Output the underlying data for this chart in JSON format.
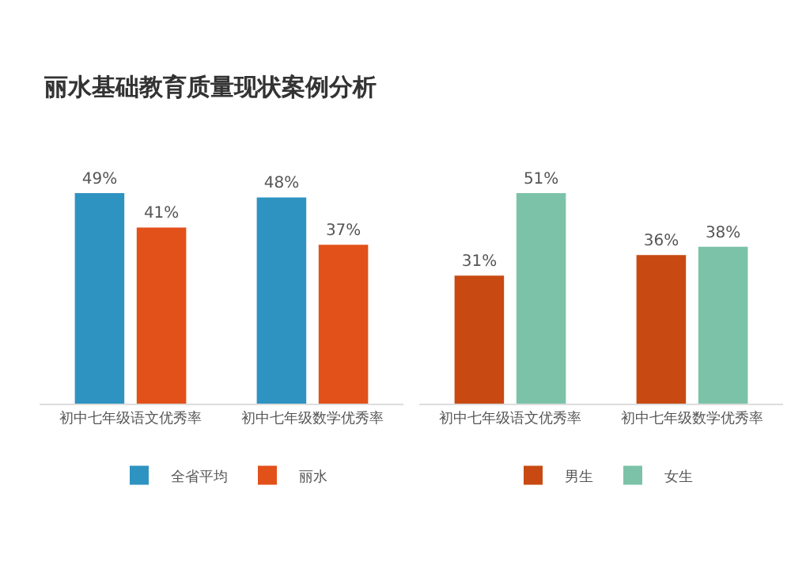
{
  "chart_data": [
    {
      "type": "bar",
      "title": "丽水基础教育质量现状案例分析",
      "categories": [
        "初中七年级语文优秀率",
        "初中七年级数学优秀率"
      ],
      "series": [
        {
          "name": "全省平均",
          "color": "#2e93c0",
          "values": [
            49,
            48
          ],
          "value_labels": [
            "49%",
            "48%"
          ]
        },
        {
          "name": "丽水",
          "color": "#e2511a",
          "values": [
            41,
            37
          ],
          "value_labels": [
            "41%",
            "37%"
          ]
        }
      ],
      "legend": "bottom"
    },
    {
      "type": "bar",
      "categories": [
        "初中七年级语文优秀率",
        "初中七年级数学优秀率"
      ],
      "series": [
        {
          "name": "男生",
          "color": "#c84a12",
          "values": [
            31,
            36
          ],
          "value_labels": [
            "31%",
            "36%"
          ]
        },
        {
          "name": "女生",
          "color": "#7cc2a9",
          "values": [
            51,
            38
          ],
          "value_labels": [
            "51%",
            "38%"
          ]
        }
      ],
      "legend": "bottom"
    }
  ]
}
